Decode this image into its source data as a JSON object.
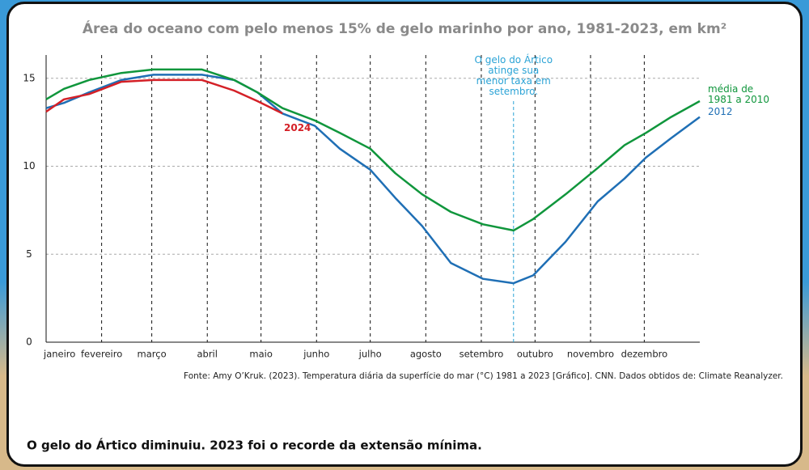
{
  "chart_data": {
    "type": "line",
    "title": "Área do oceano com pelo menos 15% de gelo marinho por ano, 1981-2023, em km²",
    "x": [
      1,
      11,
      25,
      43,
      61,
      88,
      106,
      119,
      133,
      151,
      165,
      182,
      196,
      211,
      227,
      245,
      262,
      273,
      291,
      309,
      324,
      336,
      350,
      366
    ],
    "xlim": [
      1,
      366
    ],
    "xticks": [
      {
        "value": 1,
        "label": "janeiro"
      },
      {
        "value": 32,
        "label": "fevereiro"
      },
      {
        "value": 60,
        "label": "março"
      },
      {
        "value": 91,
        "label": "abril"
      },
      {
        "value": 121,
        "label": "maio"
      },
      {
        "value": 152,
        "label": "junho"
      },
      {
        "value": 182,
        "label": "julho"
      },
      {
        "value": 213,
        "label": "agosto"
      },
      {
        "value": 244,
        "label": "setembro"
      },
      {
        "value": 274,
        "label": "outubro"
      },
      {
        "value": 305,
        "label": "novembro"
      },
      {
        "value": 335,
        "label": "dezembro"
      }
    ],
    "ylim": [
      0,
      16
    ],
    "yticks": [
      0,
      5,
      10,
      15
    ],
    "grid": true,
    "series": [
      {
        "name": "média de 1981 a 2010",
        "color": "#10963c",
        "values": [
          13.8,
          14.4,
          14.9,
          15.3,
          15.5,
          15.5,
          14.9,
          14.2,
          13.3,
          12.6,
          11.9,
          11.0,
          9.6,
          8.4,
          7.4,
          6.7,
          6.35,
          7.0,
          8.4,
          9.9,
          11.2,
          11.9,
          12.8,
          13.7
        ]
      },
      {
        "name": "2012",
        "color": "#1f6fb5",
        "values": [
          13.3,
          13.6,
          14.2,
          14.9,
          15.2,
          15.2,
          14.9,
          14.2,
          13.0,
          12.3,
          11.0,
          9.8,
          8.2,
          6.6,
          4.5,
          3.6,
          3.35,
          3.8,
          5.7,
          8.0,
          9.3,
          10.5,
          11.6,
          12.8
        ]
      },
      {
        "name": "2024",
        "color": "#d42027",
        "values": [
          13.1,
          13.8,
          14.1,
          14.8,
          14.9,
          14.9,
          14.3,
          13.7,
          13.0,
          null,
          null,
          null,
          null,
          null,
          null,
          null,
          null,
          null,
          null,
          null,
          null,
          null,
          null,
          null
        ]
      }
    ],
    "annotation": "O gelo do Ártico atinge sua menor taxa em setembro.",
    "source": "Fonte: Amy O’Kruk. (2023). Temperatura diária da superfície do mar (°C) 1981 a 2023 [Gráfico]. CNN. Dados obtidos de: Climate Reanalyzer.",
    "caption": "O gelo do Ártico diminuiu. 2023 foi o recorde da extensão mínima."
  }
}
